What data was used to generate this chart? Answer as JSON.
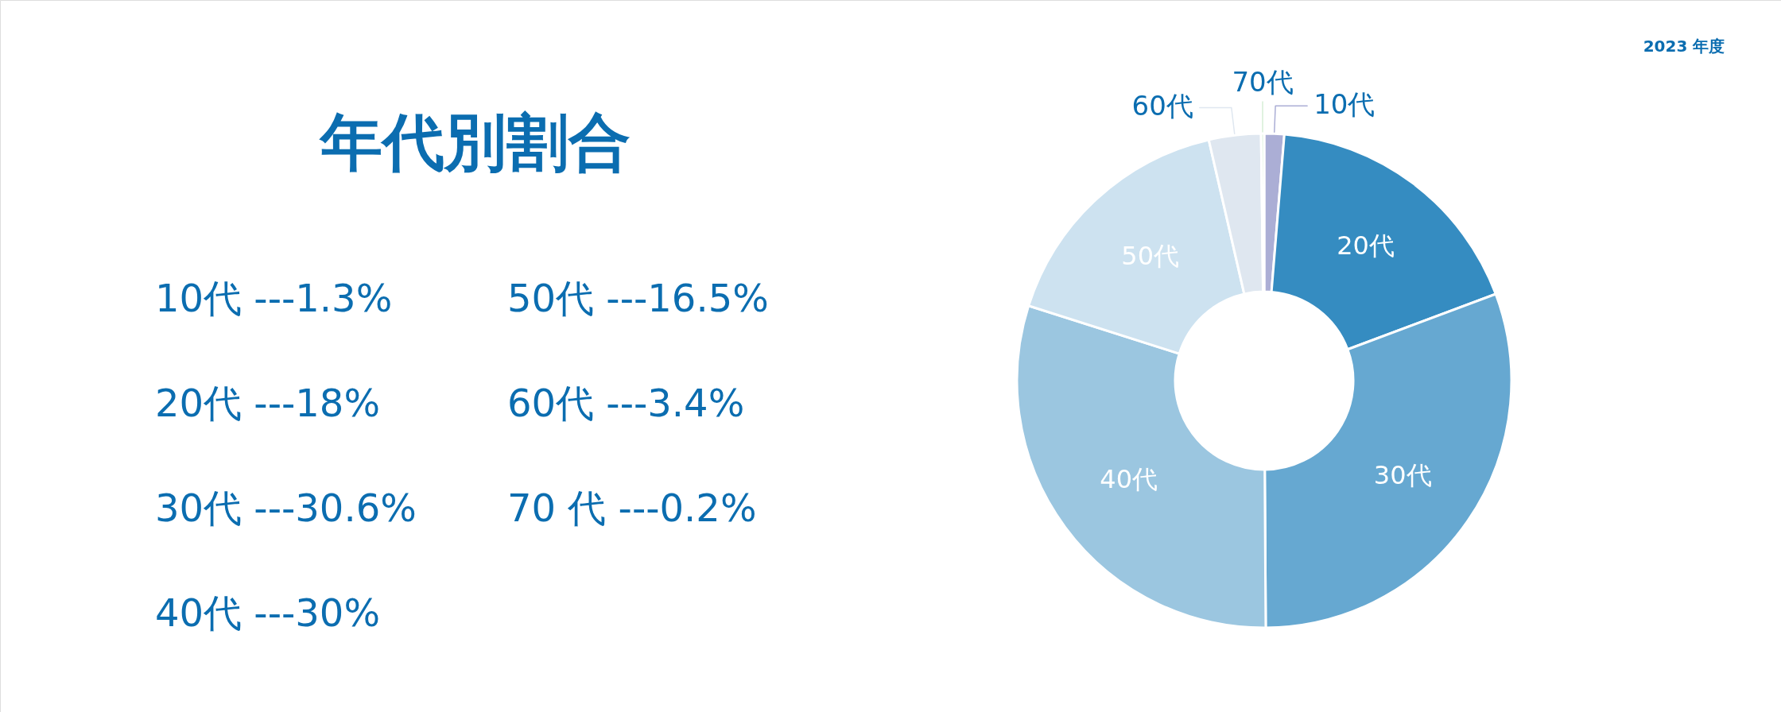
{
  "chart_data": {
    "type": "donut",
    "title": "年代別割合",
    "subtitle": "2023 年度",
    "categories": [
      "10代",
      "20代",
      "30代",
      "40代",
      "50代",
      "60代",
      "70代"
    ],
    "values": [
      1.3,
      18,
      30.6,
      30,
      16.5,
      3.4,
      0.2
    ],
    "colors": [
      "#abaed5",
      "#358cc1",
      "#66a8d1",
      "#9bc6e0",
      "#cde2f0",
      "#dfe7f0",
      "#d6efd6"
    ],
    "annotations": [
      "10代 ---1.3%",
      "20代 ---18%",
      "30代 ---30.6%",
      "40代 ---30%",
      "50代 ---16.5%",
      "60代 ---3.4%",
      "70 代 ---0.2%"
    ]
  }
}
